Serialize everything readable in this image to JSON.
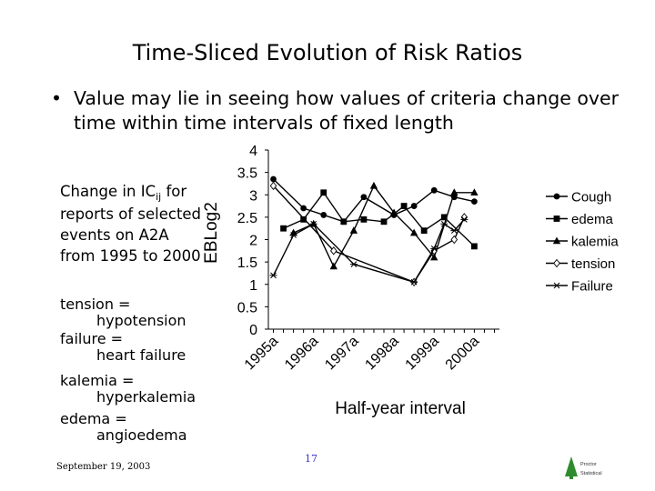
{
  "slide": {
    "title": "Time-Sliced Evolution of Risk Ratios",
    "bullet_marker": "•",
    "bullet_text": "Value may lie in seeing how values of criteria change over time within time intervals of fixed length",
    "note_prefix": "Change in IC",
    "note_sub": "ij",
    "note_rest": "for reports of selected events on A2A from 1995 to 2000",
    "definitions": [
      {
        "term": "tension =",
        "meaning": "hypotension"
      },
      {
        "term": "failure =",
        "meaning": "heart failure"
      },
      {
        "term": "kalemia =",
        "meaning": "hyperkalemia"
      },
      {
        "term": "edema =",
        "meaning": "angioedema"
      }
    ],
    "footer_date": "September 19, 2003",
    "page_number": "17",
    "logo_text_1": "Proctor",
    "logo_text_2": "Statistical",
    "logo_color": "#2e8b2e"
  },
  "chart_data": {
    "type": "line",
    "xlabel": "Half-year interval",
    "ylabel": "EBLog2",
    "ylim": [
      0,
      4
    ],
    "yticks": [
      "0",
      "0.5",
      "1",
      "1.5",
      "2",
      "2.5",
      "3",
      "3.5",
      "4"
    ],
    "x": [
      1,
      2,
      3,
      4,
      5,
      6,
      7,
      8,
      9,
      10,
      11,
      12,
      13,
      14,
      15,
      16,
      17,
      18,
      19,
      20,
      21,
      22,
      23
    ],
    "xtick_positions": [
      1,
      5,
      9,
      13,
      17,
      21
    ],
    "xtick_labels": [
      "1995a",
      "1996a",
      "1997a",
      "1998a",
      "1999a",
      "2000a"
    ],
    "grid": false,
    "legend_position": "right",
    "series": [
      {
        "name": "Cough",
        "marker": "circle",
        "points": [
          [
            1,
            3.35
          ],
          [
            4,
            2.7
          ],
          [
            6,
            2.55
          ],
          [
            8,
            2.4
          ],
          [
            10,
            2.95
          ],
          [
            13,
            2.55
          ],
          [
            15,
            2.75
          ],
          [
            17,
            3.1
          ],
          [
            19,
            2.95
          ],
          [
            21,
            2.85
          ]
        ]
      },
      {
        "name": "edema",
        "marker": "square",
        "points": [
          [
            2,
            2.25
          ],
          [
            4,
            2.45
          ],
          [
            6,
            3.05
          ],
          [
            8,
            2.4
          ],
          [
            10,
            2.45
          ],
          [
            12,
            2.4
          ],
          [
            14,
            2.75
          ],
          [
            16,
            2.2
          ],
          [
            18,
            2.5
          ],
          [
            21,
            1.85
          ]
        ]
      },
      {
        "name": "kalemia",
        "marker": "triangle",
        "points": [
          [
            3,
            2.15
          ],
          [
            5,
            2.35
          ],
          [
            7,
            1.4
          ],
          [
            9,
            2.2
          ],
          [
            11,
            3.2
          ],
          [
            13,
            2.6
          ],
          [
            15,
            2.15
          ],
          [
            17,
            1.6
          ],
          [
            19,
            3.05
          ],
          [
            21,
            3.05
          ]
        ]
      },
      {
        "name": "tension",
        "marker": "diamond",
        "points": [
          [
            1,
            3.2
          ],
          [
            7,
            1.75
          ],
          [
            15,
            1.05
          ],
          [
            17,
            1.75
          ],
          [
            19,
            2.0
          ],
          [
            20,
            2.5
          ]
        ]
      },
      {
        "name": "Failure",
        "marker": "star",
        "points": [
          [
            1,
            1.2
          ],
          [
            3,
            2.1
          ],
          [
            5,
            2.35
          ],
          [
            9,
            1.45
          ],
          [
            15,
            1.05
          ],
          [
            17,
            1.8
          ],
          [
            18,
            2.35
          ],
          [
            19,
            2.2
          ],
          [
            20,
            2.45
          ]
        ]
      }
    ]
  }
}
